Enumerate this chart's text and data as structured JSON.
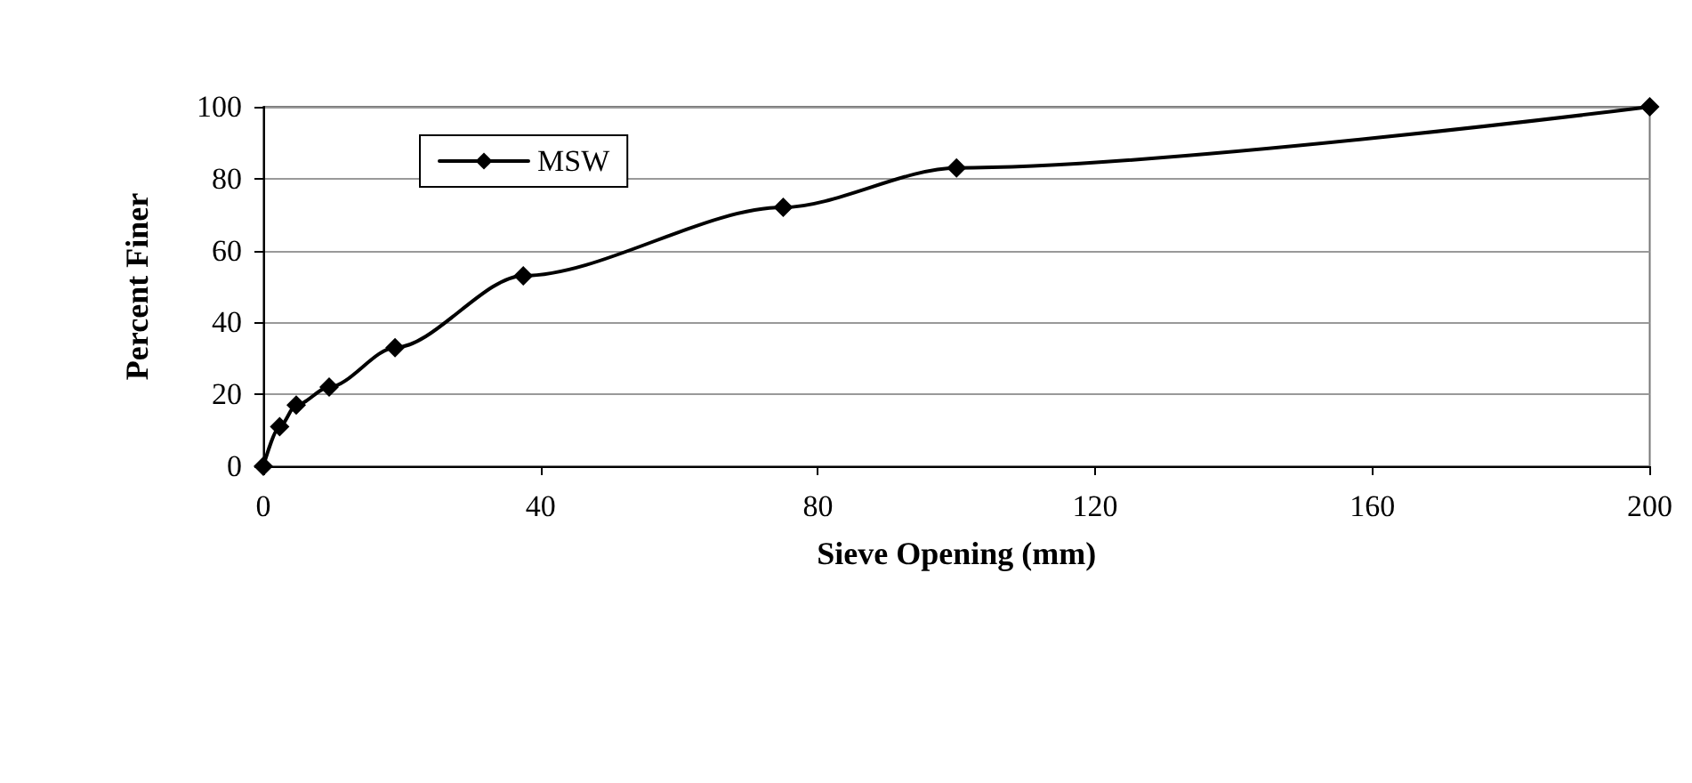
{
  "chart_data": {
    "type": "line",
    "xlabel": "Sieve Opening (mm)",
    "ylabel": "Percent Finer",
    "x": [
      0,
      2.36,
      4.75,
      9.5,
      19,
      37.5,
      75,
      100,
      200
    ],
    "series": [
      {
        "name": "MSW",
        "color": "#000000",
        "values": [
          0,
          11,
          17,
          22,
          33,
          53,
          72,
          83,
          100
        ]
      }
    ],
    "xlim": [
      0,
      200
    ],
    "xticks": [
      0,
      40,
      80,
      120,
      160,
      200
    ],
    "ylim": [
      0,
      100
    ],
    "yticks": [
      0,
      20,
      40,
      60,
      80,
      100
    ],
    "grid": "y",
    "legend": "top left",
    "marker": "diamond",
    "line_style": "solid"
  }
}
